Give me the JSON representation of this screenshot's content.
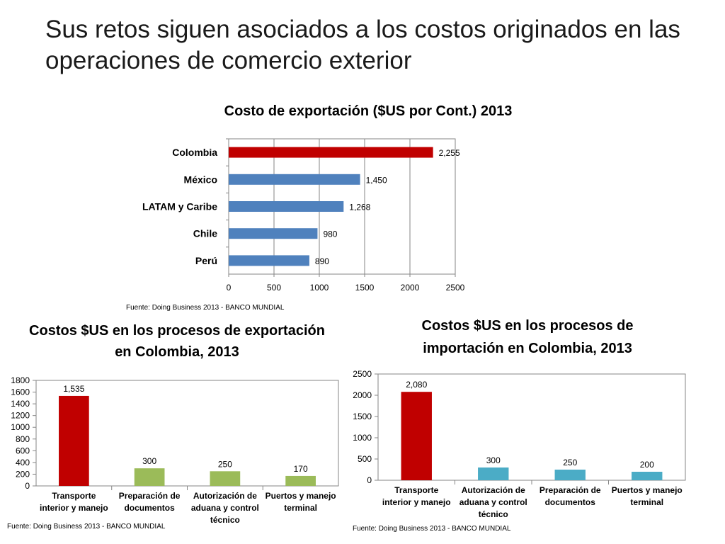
{
  "slide": {
    "title": "Sus retos siguen asociados a los costos originados en las operaciones de comercio exterior"
  },
  "colors": {
    "highlight": "#c00000",
    "blue": "#4f81bd",
    "green": "#9bbb59",
    "teal": "#4bacc6",
    "grid": "#868686"
  },
  "chart_data": [
    {
      "type": "bar",
      "orientation": "horizontal",
      "title": "Costo de exportación ($US por Cont.) 2013",
      "source": "Fuente:  Doing Business 2013 - BANCO MUNDIAL",
      "categories": [
        "Colombia",
        "México",
        "LATAM y Caribe",
        "Chile",
        "Perú"
      ],
      "values": [
        2255,
        1450,
        1268,
        980,
        890
      ],
      "data_labels": [
        "2,255",
        "1,450",
        "1,268",
        "980",
        "890"
      ],
      "bar_colors": [
        "#c00000",
        "#4f81bd",
        "#4f81bd",
        "#4f81bd",
        "#4f81bd"
      ],
      "xlim": [
        0,
        2500
      ],
      "xticks": [
        0,
        500,
        1000,
        1500,
        2000,
        2500
      ],
      "tick_labels": [
        "0",
        "500",
        "1000",
        "1500",
        "2000",
        "2500"
      ],
      "grid": true
    },
    {
      "type": "bar",
      "orientation": "vertical",
      "title": "Costos $US en los procesos de exportación en Colombia, 2013",
      "source": "Fuente:  Doing Business 2013 - BANCO MUNDIAL",
      "categories": [
        [
          "Transporte",
          "interior y manejo"
        ],
        [
          "Preparación de",
          "documentos"
        ],
        [
          "Autorización de",
          "aduana y control",
          "técnico"
        ],
        [
          "Puertos y manejo",
          "terminal"
        ]
      ],
      "values": [
        1535,
        300,
        250,
        170
      ],
      "data_labels": [
        "1,535",
        "300",
        "250",
        "170"
      ],
      "bar_colors": [
        "#c00000",
        "#9bbb59",
        "#9bbb59",
        "#9bbb59"
      ],
      "ylim": [
        0,
        1800
      ],
      "yticks": [
        0,
        200,
        400,
        600,
        800,
        1000,
        1200,
        1400,
        1600,
        1800
      ],
      "tick_labels": [
        "0",
        "200",
        "400",
        "600",
        "800",
        "1000",
        "1200",
        "1400",
        "1600",
        "1800"
      ],
      "grid": false
    },
    {
      "type": "bar",
      "orientation": "vertical",
      "title": "Costos $US en los procesos de importación en Colombia, 2013",
      "source": "Fuente:  Doing Business 2013 - BANCO MUNDIAL",
      "categories": [
        [
          "Transporte",
          "interior y manejo"
        ],
        [
          "Autorización de",
          "aduana y control",
          "técnico"
        ],
        [
          "Preparación de",
          "documentos"
        ],
        [
          "Puertos y manejo",
          "terminal"
        ]
      ],
      "values": [
        2080,
        300,
        250,
        200
      ],
      "data_labels": [
        "2,080",
        "300",
        "250",
        "200"
      ],
      "bar_colors": [
        "#c00000",
        "#4bacc6",
        "#4bacc6",
        "#4bacc6"
      ],
      "ylim": [
        0,
        2500
      ],
      "yticks": [
        0,
        500,
        1000,
        1500,
        2000,
        2500
      ],
      "tick_labels": [
        "0",
        "500",
        "1000",
        "1500",
        "2000",
        "2500"
      ],
      "grid": false
    }
  ]
}
